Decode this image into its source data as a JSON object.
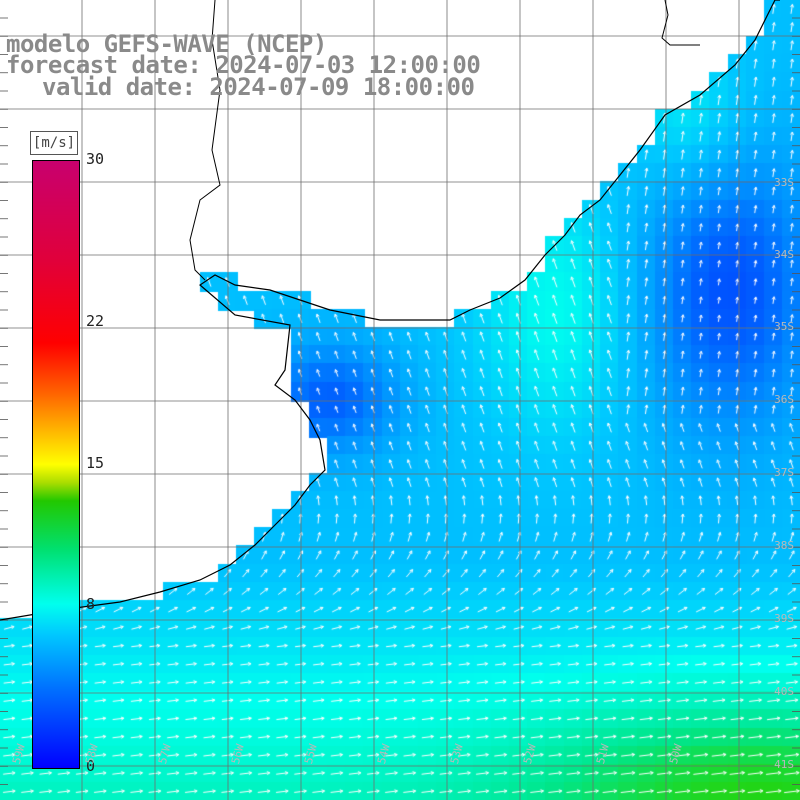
{
  "title": {
    "line1": "modelo GEFS-WAVE (NCEP)",
    "line2": "forecast date: 2024-07-03 12:00:00",
    "line3": "valid date: 2024-07-09 18:00:00"
  },
  "colorbar": {
    "unit": "[m/s]",
    "ticks": [
      "30",
      "22",
      "15",
      "8",
      "0"
    ],
    "tick_values": [
      30,
      22,
      15,
      8,
      0
    ],
    "range": [
      0,
      30
    ],
    "colors": [
      "#0000ff",
      "#0070ff",
      "#00c8ff",
      "#00ffee",
      "#00e070",
      "#22c800",
      "#ffff00",
      "#ff6000",
      "#ff0000",
      "#c8006e"
    ]
  },
  "axes": {
    "lat_labels": [
      "33S",
      "34S",
      "35S",
      "36S",
      "37S",
      "38S",
      "39S",
      "40S",
      "41S"
    ],
    "lon_labels": [
      "59W",
      "58W",
      "57W",
      "56W",
      "55W",
      "54W",
      "53W",
      "52W",
      "51W",
      "50W"
    ],
    "grid": true
  },
  "colors": {
    "land": "#ffffff",
    "coast": "#000000",
    "grid": "#6e6e6e",
    "arrow": "#ffffff",
    "title": "#8a8a8a",
    "axis_label": "#b9b9b9"
  }
}
